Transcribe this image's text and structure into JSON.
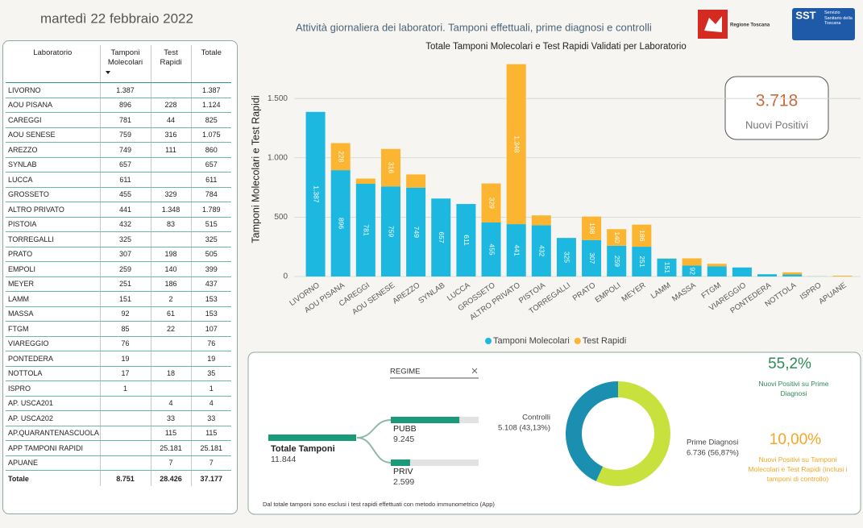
{
  "header": {
    "date": "martedì 22 febbraio 2022",
    "title": "Attività giornaliera dei laboratori. Tamponi effettuali, prime diagnosi e controlli",
    "logo_left": "Regione Toscana",
    "logo_right": "SST",
    "logo_right_text": "Servizio Sanitario della Toscana"
  },
  "table": {
    "columns": [
      "Laboratorio",
      "Tamponi Molecolari",
      "Test Rapidi",
      "Totale"
    ],
    "rows": [
      [
        "LIVORNO",
        "1.387",
        null,
        "1.387"
      ],
      [
        "AOU PISANA",
        "896",
        "228",
        "1.124"
      ],
      [
        "CAREGGI",
        "781",
        "44",
        "825"
      ],
      [
        "AOU SENESE",
        "759",
        "316",
        "1.075"
      ],
      [
        "AREZZO",
        "749",
        "111",
        "860"
      ],
      [
        "SYNLAB",
        "657",
        null,
        "657"
      ],
      [
        "LUCCA",
        "611",
        null,
        "611"
      ],
      [
        "GROSSETO",
        "455",
        "329",
        "784"
      ],
      [
        "ALTRO PRIVATO",
        "441",
        "1.348",
        "1.789"
      ],
      [
        "PISTOIA",
        "432",
        "83",
        "515"
      ],
      [
        "TORREGALLI",
        "325",
        null,
        "325"
      ],
      [
        "PRATO",
        "307",
        "198",
        "505"
      ],
      [
        "EMPOLI",
        "259",
        "140",
        "399"
      ],
      [
        "MEYER",
        "251",
        "186",
        "437"
      ],
      [
        "LAMM",
        "151",
        "2",
        "153"
      ],
      [
        "MASSA",
        "92",
        "61",
        "153"
      ],
      [
        "FTGM",
        "85",
        "22",
        "107"
      ],
      [
        "VIAREGGIO",
        "76",
        null,
        "76"
      ],
      [
        "PONTEDERA",
        "19",
        null,
        "19"
      ],
      [
        "NOTTOLA",
        "17",
        "18",
        "35"
      ],
      [
        "ISPRO",
        "1",
        null,
        "1"
      ],
      [
        "AP. USCA201",
        null,
        "4",
        "4"
      ],
      [
        "AP. USCA202",
        null,
        "33",
        "33"
      ],
      [
        "AP.QUARANTENASCUOLA",
        null,
        "115",
        "115"
      ],
      [
        "APP TAMPONI RAPIDI",
        null,
        "25.181",
        "25.181"
      ],
      [
        "APUANE",
        null,
        "7",
        "7"
      ]
    ],
    "total": [
      "Totale",
      "8.751",
      "28.426",
      "37.177"
    ]
  },
  "chart_data": [
    {
      "type": "stacked-bar",
      "title": "Totale Tamponi Molecolari e Test Rapidi Validati per Laboratorio",
      "y_label": "Tamponi Molecolari e Test Rapidi",
      "categories": [
        "LIVORNO",
        "AOU PISANA",
        "CAREGGI",
        "AOU SENESE",
        "AREZZO",
        "SYNLAB",
        "LUCCA",
        "GROSSETO",
        "ALTRO PRIVATO",
        "PISTOIA",
        "TORREGALLI",
        "PRATO",
        "EMPOLI",
        "MEYER",
        "LAMM",
        "MASSA",
        "FTGM",
        "VIAREGGIO",
        "PONTEDERA",
        "NOTTOLA",
        "ISPRO",
        "APUANE"
      ],
      "series": [
        {
          "name": "Tamponi Molecolari",
          "color": "#1cb8e0",
          "values": [
            1387,
            896,
            781,
            759,
            749,
            657,
            611,
            455,
            441,
            432,
            325,
            307,
            259,
            251,
            151,
            92,
            85,
            76,
            19,
            17,
            1,
            null
          ],
          "value_labels": [
            "1.387",
            "896",
            "781",
            "759",
            "749",
            "657",
            "611",
            "455",
            "441",
            "432",
            "325",
            "307",
            "259",
            "251",
            "151",
            "92",
            null,
            null,
            null,
            null,
            null,
            null
          ]
        },
        {
          "name": "Test Rapidi",
          "color": "#fbb531",
          "values": [
            null,
            228,
            44,
            316,
            111,
            null,
            null,
            329,
            1348,
            83,
            null,
            198,
            140,
            186,
            2,
            61,
            22,
            null,
            null,
            18,
            null,
            7
          ],
          "value_labels": [
            null,
            "228",
            null,
            "316",
            null,
            null,
            null,
            "329",
            "1.348",
            null,
            null,
            "198",
            "140",
            "186",
            null,
            null,
            null,
            null,
            null,
            null,
            null,
            null
          ]
        }
      ],
      "ylim": [
        0,
        1800
      ],
      "yticks": [
        0,
        500,
        {
          "value": 1000,
          "label": "1.000"
        },
        {
          "value": 1500,
          "label": "1.500"
        }
      ],
      "grid": true,
      "legend": "bottom"
    },
    {
      "type": "donut",
      "categories": [
        "Controlli",
        "Prime Diagnosi"
      ],
      "values": [
        5108,
        6736
      ],
      "value_labels": [
        "5.108 (43,13%)",
        "6.736 (56,87%)"
      ],
      "colors": [
        "#1a8fb0",
        "#c8e13c"
      ]
    }
  ],
  "kpi": {
    "main": {
      "value": "3.718",
      "label": "Nuovi Positivi"
    },
    "ratio1": {
      "value": "55,2%",
      "label": "Nuovi Positivi su Prime Diagnosi"
    },
    "ratio2": {
      "value": "10,00%",
      "label": "Nuovi Positivi su Tamponi Molecolari e Test Rapidi (inclusi i tamponi di controllo)"
    }
  },
  "tree": {
    "filter": "REGIME",
    "title": "Totale Tamponi",
    "value": 11844,
    "value_label": "11.844",
    "branches": [
      {
        "label": "PUBB",
        "value": 9245,
        "value_label": "9.245"
      },
      {
        "label": "PRIV",
        "value": 2599,
        "value_label": "2.599"
      }
    ]
  },
  "footnote": "Dal totale tamponi sono esclusi i test rapidi effettuati con metodo immunometrico (App)"
}
